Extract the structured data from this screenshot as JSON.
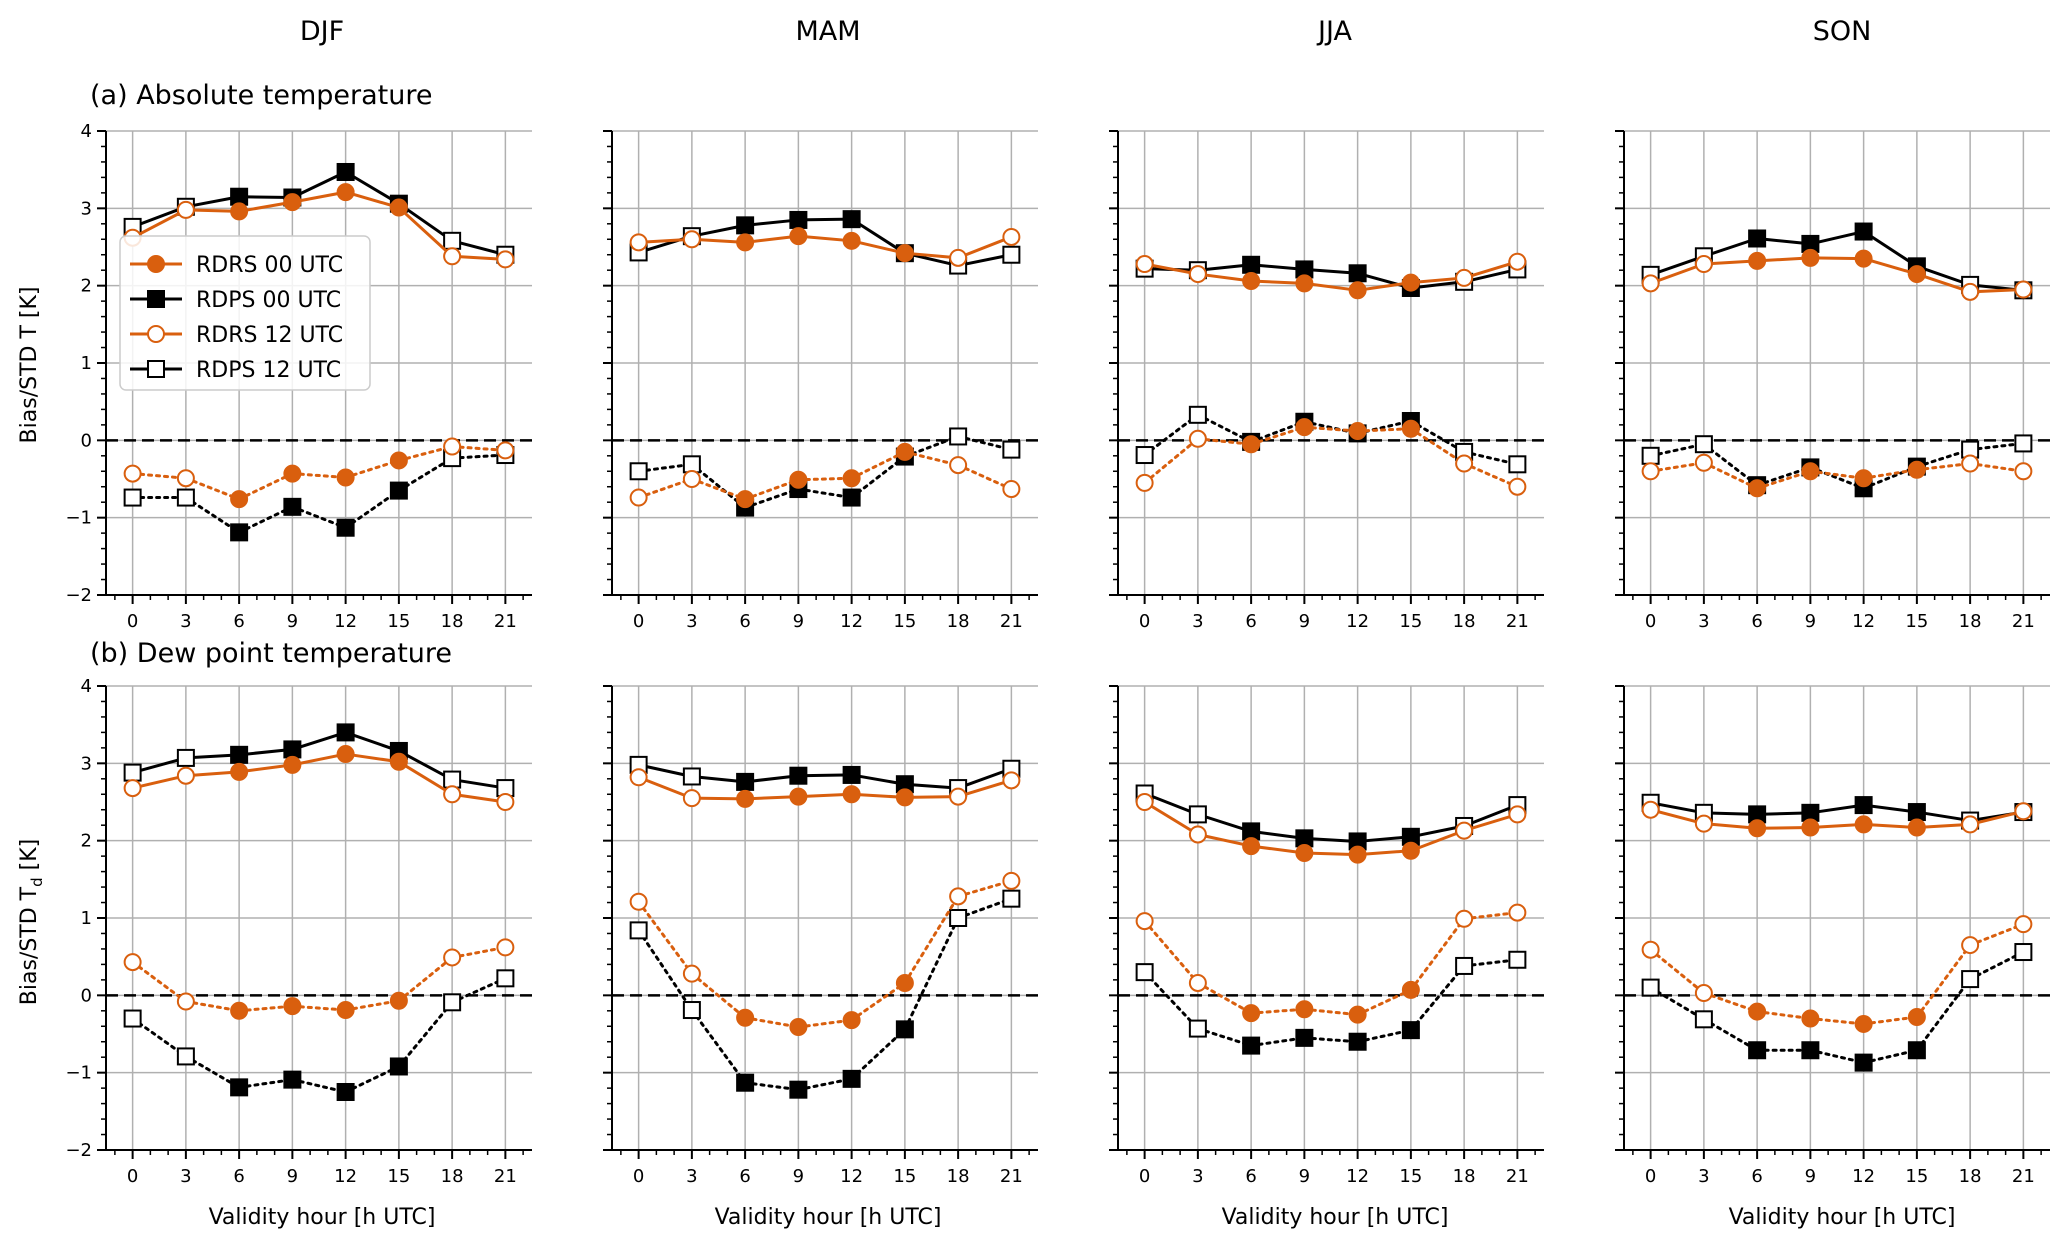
{
  "season_titles": [
    "DJF",
    "MAM",
    "JJA",
    "SON"
  ],
  "row_titles": [
    "(a) Absolute temperature",
    "(b) Dew point temperature"
  ],
  "y_labels": [
    "Bias/STD T [K]",
    "Bias/STD T",
    "d",
    " [K]"
  ],
  "x_label": "Validity hour [h UTC]",
  "colors": {
    "rdrs": "#d95f0e",
    "rdps": "#000000",
    "grid": "#b0b0b0",
    "zero_line": "#000000"
  },
  "legend": [
    {
      "label": "RDRS 00 UTC",
      "color": "#d95f0e",
      "marker": "filled-circle",
      "linestyle": "solid"
    },
    {
      "label": "RDPS 00 UTC",
      "color": "#000000",
      "marker": "filled-square",
      "linestyle": "solid"
    },
    {
      "label": "RDRS 12 UTC",
      "color": "#d95f0e",
      "marker": "open-circle",
      "linestyle": "solid"
    },
    {
      "label": "RDPS 12 UTC",
      "color": "#000000",
      "marker": "open-square",
      "linestyle": "solid"
    }
  ],
  "chart_data": [
    {
      "type": "line",
      "panel": "(a) Absolute temperature - DJF",
      "x": [
        0,
        3,
        6,
        9,
        12,
        15,
        18,
        21
      ],
      "xticks": [
        0,
        3,
        6,
        9,
        12,
        15,
        18,
        21
      ],
      "xlim": [
        -1.5,
        22.5
      ],
      "ylim": [
        -2,
        4
      ],
      "yticks": [
        -2,
        -1,
        0,
        1,
        2,
        3,
        4
      ],
      "grid": true,
      "legend": "upper-left",
      "std": [
        {
          "model": "RDRS",
          "values": [
            2.62,
            2.98,
            2.96,
            3.08,
            3.21,
            3.01,
            2.38,
            2.34
          ],
          "filled": [
            false,
            false,
            true,
            true,
            true,
            true,
            false,
            false
          ]
        },
        {
          "model": "RDPS",
          "values": [
            2.76,
            3.02,
            3.15,
            3.14,
            3.47,
            3.06,
            2.58,
            2.4
          ],
          "filled": [
            false,
            false,
            true,
            true,
            true,
            true,
            false,
            false
          ]
        }
      ],
      "bias": [
        {
          "model": "RDRS",
          "values": [
            -0.43,
            -0.49,
            -0.76,
            -0.43,
            -0.48,
            -0.26,
            -0.08,
            -0.13
          ],
          "filled": [
            false,
            false,
            true,
            true,
            true,
            true,
            false,
            false
          ]
        },
        {
          "model": "RDPS",
          "values": [
            -0.74,
            -0.74,
            -1.19,
            -0.86,
            -1.13,
            -0.65,
            -0.23,
            -0.19
          ],
          "filled": [
            false,
            false,
            true,
            true,
            true,
            true,
            false,
            false
          ]
        }
      ]
    },
    {
      "type": "line",
      "panel": "(a) Absolute temperature - MAM",
      "x": [
        0,
        3,
        6,
        9,
        12,
        15,
        18,
        21
      ],
      "xticks": [
        0,
        3,
        6,
        9,
        12,
        15,
        18,
        21
      ],
      "xlim": [
        -1.5,
        22.5
      ],
      "ylim": [
        -2,
        4
      ],
      "yticks": [
        -2,
        -1,
        0,
        1,
        2,
        3,
        4
      ],
      "grid": true,
      "std": [
        {
          "model": "RDRS",
          "values": [
            2.56,
            2.6,
            2.56,
            2.64,
            2.58,
            2.42,
            2.36,
            2.63
          ],
          "filled": [
            false,
            false,
            true,
            true,
            true,
            true,
            false,
            false
          ]
        },
        {
          "model": "RDPS",
          "values": [
            2.43,
            2.64,
            2.78,
            2.85,
            2.86,
            2.42,
            2.26,
            2.4
          ],
          "filled": [
            false,
            false,
            true,
            true,
            true,
            true,
            false,
            false
          ]
        }
      ],
      "bias": [
        {
          "model": "RDRS",
          "values": [
            -0.74,
            -0.5,
            -0.76,
            -0.51,
            -0.49,
            -0.15,
            -0.32,
            -0.63
          ],
          "filled": [
            false,
            false,
            true,
            true,
            true,
            true,
            false,
            false
          ]
        },
        {
          "model": "RDPS",
          "values": [
            -0.4,
            -0.31,
            -0.87,
            -0.63,
            -0.74,
            -0.21,
            0.05,
            -0.12
          ],
          "filled": [
            false,
            false,
            true,
            true,
            true,
            true,
            false,
            false
          ]
        }
      ]
    },
    {
      "type": "line",
      "panel": "(a) Absolute temperature - JJA",
      "x": [
        0,
        3,
        6,
        9,
        12,
        15,
        18,
        21
      ],
      "xticks": [
        0,
        3,
        6,
        9,
        12,
        15,
        18,
        21
      ],
      "xlim": [
        -1.5,
        22.5
      ],
      "ylim": [
        -2,
        4
      ],
      "yticks": [
        -2,
        -1,
        0,
        1,
        2,
        3,
        4
      ],
      "grid": true,
      "std": [
        {
          "model": "RDRS",
          "values": [
            2.28,
            2.15,
            2.06,
            2.03,
            1.94,
            2.04,
            2.1,
            2.31
          ],
          "filled": [
            false,
            false,
            true,
            true,
            true,
            true,
            false,
            false
          ]
        },
        {
          "model": "RDPS",
          "values": [
            2.22,
            2.2,
            2.27,
            2.21,
            2.16,
            1.97,
            2.05,
            2.21
          ],
          "filled": [
            false,
            false,
            true,
            true,
            true,
            true,
            false,
            false
          ]
        }
      ],
      "bias": [
        {
          "model": "RDRS",
          "values": [
            -0.55,
            0.02,
            -0.05,
            0.17,
            0.12,
            0.15,
            -0.3,
            -0.6
          ],
          "filled": [
            false,
            false,
            true,
            true,
            true,
            true,
            false,
            false
          ]
        },
        {
          "model": "RDPS",
          "values": [
            -0.19,
            0.33,
            -0.02,
            0.24,
            0.09,
            0.25,
            -0.15,
            -0.31
          ],
          "filled": [
            false,
            false,
            true,
            true,
            true,
            true,
            false,
            false
          ]
        }
      ]
    },
    {
      "type": "line",
      "panel": "(a) Absolute temperature - SON",
      "x": [
        0,
        3,
        6,
        9,
        12,
        15,
        18,
        21
      ],
      "xticks": [
        0,
        3,
        6,
        9,
        12,
        15,
        18,
        21
      ],
      "xlim": [
        -1.5,
        22.5
      ],
      "ylim": [
        -2,
        4
      ],
      "yticks": [
        -2,
        -1,
        0,
        1,
        2,
        3,
        4
      ],
      "grid": true,
      "std": [
        {
          "model": "RDRS",
          "values": [
            2.03,
            2.28,
            2.32,
            2.36,
            2.35,
            2.15,
            1.92,
            1.95
          ],
          "filled": [
            false,
            false,
            true,
            true,
            true,
            true,
            false,
            false
          ]
        },
        {
          "model": "RDPS",
          "values": [
            2.14,
            2.38,
            2.61,
            2.54,
            2.7,
            2.25,
            2.01,
            1.94
          ],
          "filled": [
            false,
            false,
            true,
            true,
            true,
            true,
            false,
            false
          ]
        }
      ],
      "bias": [
        {
          "model": "RDRS",
          "values": [
            -0.4,
            -0.29,
            -0.62,
            -0.4,
            -0.49,
            -0.38,
            -0.3,
            -0.4
          ],
          "filled": [
            false,
            false,
            true,
            true,
            true,
            true,
            false,
            false
          ]
        },
        {
          "model": "RDPS",
          "values": [
            -0.2,
            -0.05,
            -0.58,
            -0.35,
            -0.62,
            -0.34,
            -0.12,
            -0.04
          ],
          "filled": [
            false,
            false,
            true,
            true,
            true,
            true,
            false,
            false
          ]
        }
      ]
    },
    {
      "type": "line",
      "panel": "(b) Dew point temperature - DJF",
      "x": [
        0,
        3,
        6,
        9,
        12,
        15,
        18,
        21
      ],
      "xticks": [
        0,
        3,
        6,
        9,
        12,
        15,
        18,
        21
      ],
      "xlim": [
        -1.5,
        22.5
      ],
      "ylim": [
        -2,
        4
      ],
      "yticks": [
        -2,
        -1,
        0,
        1,
        2,
        3,
        4
      ],
      "grid": true,
      "std": [
        {
          "model": "RDRS",
          "values": [
            2.68,
            2.84,
            2.89,
            2.98,
            3.12,
            3.02,
            2.6,
            2.5
          ],
          "filled": [
            false,
            false,
            true,
            true,
            true,
            true,
            false,
            false
          ]
        },
        {
          "model": "RDPS",
          "values": [
            2.88,
            3.07,
            3.11,
            3.18,
            3.4,
            3.16,
            2.79,
            2.68
          ],
          "filled": [
            false,
            false,
            true,
            true,
            true,
            true,
            false,
            false
          ]
        }
      ],
      "bias": [
        {
          "model": "RDRS",
          "values": [
            0.43,
            -0.08,
            -0.2,
            -0.14,
            -0.19,
            -0.07,
            0.49,
            0.62
          ],
          "filled": [
            false,
            false,
            true,
            true,
            true,
            true,
            false,
            false
          ]
        },
        {
          "model": "RDPS",
          "values": [
            -0.3,
            -0.79,
            -1.19,
            -1.09,
            -1.25,
            -0.92,
            -0.09,
            0.22
          ],
          "filled": [
            false,
            false,
            true,
            true,
            true,
            true,
            false,
            false
          ]
        }
      ]
    },
    {
      "type": "line",
      "panel": "(b) Dew point temperature - MAM",
      "x": [
        0,
        3,
        6,
        9,
        12,
        15,
        18,
        21
      ],
      "xticks": [
        0,
        3,
        6,
        9,
        12,
        15,
        18,
        21
      ],
      "xlim": [
        -1.5,
        22.5
      ],
      "ylim": [
        -2,
        4
      ],
      "yticks": [
        -2,
        -1,
        0,
        1,
        2,
        3,
        4
      ],
      "grid": true,
      "std": [
        {
          "model": "RDRS",
          "values": [
            2.82,
            2.55,
            2.54,
            2.57,
            2.6,
            2.56,
            2.57,
            2.78
          ],
          "filled": [
            false,
            false,
            true,
            true,
            true,
            true,
            false,
            false
          ]
        },
        {
          "model": "RDPS",
          "values": [
            2.98,
            2.83,
            2.76,
            2.84,
            2.85,
            2.73,
            2.68,
            2.93
          ],
          "filled": [
            false,
            false,
            true,
            true,
            true,
            true,
            false,
            false
          ]
        }
      ],
      "bias": [
        {
          "model": "RDRS",
          "values": [
            1.21,
            0.28,
            -0.29,
            -0.41,
            -0.32,
            0.16,
            1.28,
            1.48
          ],
          "filled": [
            false,
            false,
            true,
            true,
            true,
            true,
            false,
            false
          ]
        },
        {
          "model": "RDPS",
          "values": [
            0.84,
            -0.19,
            -1.13,
            -1.22,
            -1.08,
            -0.44,
            1.0,
            1.25
          ],
          "filled": [
            false,
            false,
            true,
            true,
            true,
            true,
            false,
            false
          ]
        }
      ]
    },
    {
      "type": "line",
      "panel": "(b) Dew point temperature - JJA",
      "x": [
        0,
        3,
        6,
        9,
        12,
        15,
        18,
        21
      ],
      "xticks": [
        0,
        3,
        6,
        9,
        12,
        15,
        18,
        21
      ],
      "xlim": [
        -1.5,
        22.5
      ],
      "ylim": [
        -2,
        4
      ],
      "yticks": [
        -2,
        -1,
        0,
        1,
        2,
        3,
        4
      ],
      "grid": true,
      "std": [
        {
          "model": "RDRS",
          "values": [
            2.5,
            2.08,
            1.93,
            1.84,
            1.82,
            1.87,
            2.13,
            2.34
          ],
          "filled": [
            false,
            false,
            true,
            true,
            true,
            true,
            false,
            false
          ]
        },
        {
          "model": "RDPS",
          "values": [
            2.61,
            2.34,
            2.12,
            2.03,
            1.99,
            2.05,
            2.19,
            2.46
          ],
          "filled": [
            false,
            false,
            true,
            true,
            true,
            true,
            false,
            false
          ]
        }
      ],
      "bias": [
        {
          "model": "RDRS",
          "values": [
            0.96,
            0.16,
            -0.23,
            -0.18,
            -0.25,
            0.07,
            0.99,
            1.07
          ],
          "filled": [
            false,
            false,
            true,
            true,
            true,
            true,
            false,
            false
          ]
        },
        {
          "model": "RDPS",
          "values": [
            0.3,
            -0.43,
            -0.65,
            -0.55,
            -0.6,
            -0.45,
            0.38,
            0.46
          ],
          "filled": [
            false,
            false,
            true,
            true,
            true,
            true,
            false,
            false
          ]
        }
      ]
    },
    {
      "type": "line",
      "panel": "(b) Dew point temperature - SON",
      "x": [
        0,
        3,
        6,
        9,
        12,
        15,
        18,
        21
      ],
      "xticks": [
        0,
        3,
        6,
        9,
        12,
        15,
        18,
        21
      ],
      "xlim": [
        -1.5,
        22.5
      ],
      "ylim": [
        -2,
        4
      ],
      "yticks": [
        -2,
        -1,
        0,
        1,
        2,
        3,
        4
      ],
      "grid": true,
      "std": [
        {
          "model": "RDRS",
          "values": [
            2.4,
            2.22,
            2.16,
            2.17,
            2.21,
            2.17,
            2.21,
            2.38
          ],
          "filled": [
            false,
            false,
            true,
            true,
            true,
            true,
            false,
            false
          ]
        },
        {
          "model": "RDPS",
          "values": [
            2.49,
            2.36,
            2.34,
            2.36,
            2.46,
            2.37,
            2.26,
            2.37
          ],
          "filled": [
            false,
            false,
            true,
            true,
            true,
            true,
            false,
            false
          ]
        }
      ],
      "bias": [
        {
          "model": "RDRS",
          "values": [
            0.59,
            0.03,
            -0.21,
            -0.3,
            -0.37,
            -0.28,
            0.65,
            0.92
          ],
          "filled": [
            false,
            false,
            true,
            true,
            true,
            true,
            false,
            false
          ]
        },
        {
          "model": "RDPS",
          "values": [
            0.1,
            -0.31,
            -0.71,
            -0.71,
            -0.87,
            -0.71,
            0.21,
            0.56
          ],
          "filled": [
            false,
            false,
            true,
            true,
            true,
            true,
            false,
            false
          ]
        }
      ]
    }
  ]
}
